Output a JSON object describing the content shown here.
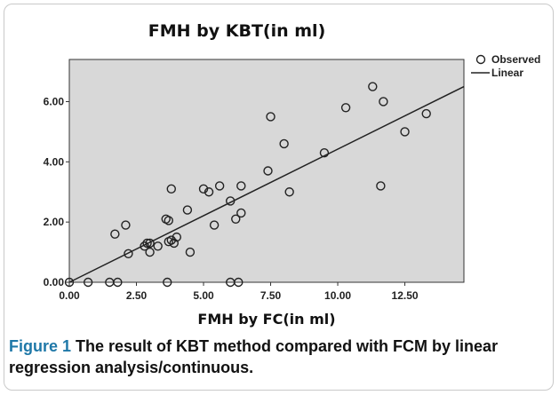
{
  "caption": {
    "label": "Figure 1",
    "text": "The result of KBT method compared with FCM by linear regression analysis/continuous."
  },
  "chart_data": {
    "type": "scatter",
    "title": "FMH by KBT(in ml)",
    "xlabel": "FMH by FC(in ml)",
    "ylabel": "",
    "xlim": [
      0,
      14.7
    ],
    "ylim": [
      0,
      7.4
    ],
    "x_ticks": [
      "0.00",
      "2.50",
      "5.00",
      "7.50",
      "10.00",
      "12.50"
    ],
    "y_ticks": [
      "0.00",
      "2.00",
      "4.00",
      "6.00"
    ],
    "grid": false,
    "background": "#d8d8d8",
    "legend_position": "top-right",
    "series": [
      {
        "name": "Observed",
        "marker": "open-circle",
        "points": [
          [
            0.0,
            0.0
          ],
          [
            0.7,
            0.0
          ],
          [
            1.5,
            0.0
          ],
          [
            1.8,
            0.0
          ],
          [
            1.7,
            1.6
          ],
          [
            2.1,
            1.9
          ],
          [
            2.2,
            0.95
          ],
          [
            2.8,
            1.2
          ],
          [
            2.9,
            1.3
          ],
          [
            3.0,
            1.0
          ],
          [
            3.0,
            1.3
          ],
          [
            3.3,
            1.2
          ],
          [
            3.6,
            2.1
          ],
          [
            3.7,
            2.05
          ],
          [
            3.65,
            0.0
          ],
          [
            3.7,
            1.35
          ],
          [
            3.8,
            1.4
          ],
          [
            3.8,
            3.1
          ],
          [
            3.9,
            1.3
          ],
          [
            4.0,
            1.5
          ],
          [
            4.4,
            2.4
          ],
          [
            4.5,
            1.0
          ],
          [
            5.0,
            3.1
          ],
          [
            5.2,
            3.0
          ],
          [
            5.4,
            1.9
          ],
          [
            5.6,
            3.2
          ],
          [
            6.0,
            0.0
          ],
          [
            6.0,
            2.7
          ],
          [
            6.2,
            2.1
          ],
          [
            6.3,
            0.0
          ],
          [
            6.4,
            3.2
          ],
          [
            6.4,
            2.3
          ],
          [
            7.4,
            3.7
          ],
          [
            7.5,
            5.5
          ],
          [
            8.0,
            4.6
          ],
          [
            8.2,
            3.0
          ],
          [
            9.5,
            4.3
          ],
          [
            10.3,
            5.8
          ],
          [
            11.3,
            6.5
          ],
          [
            11.6,
            3.2
          ],
          [
            11.7,
            6.0
          ],
          [
            12.5,
            5.0
          ],
          [
            13.3,
            5.6
          ]
        ]
      },
      {
        "name": "Linear",
        "marker": "line",
        "points": [
          [
            0.0,
            0.0
          ],
          [
            14.7,
            6.5
          ]
        ]
      }
    ]
  }
}
